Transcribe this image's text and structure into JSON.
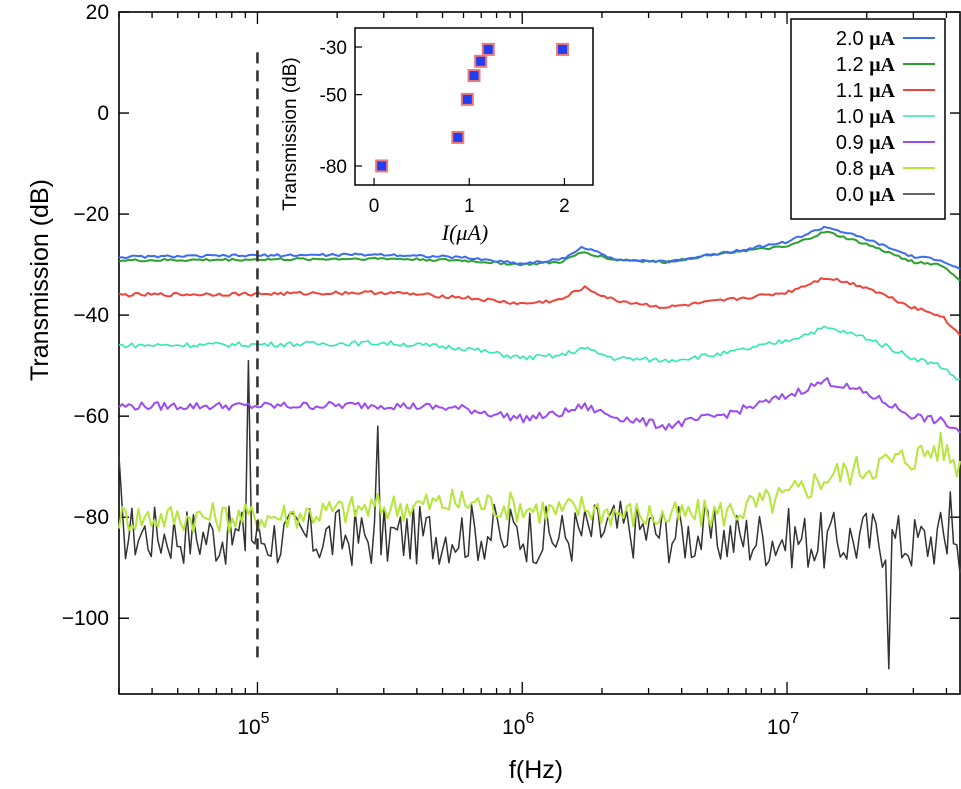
{
  "chart_data": [
    {
      "type": "line",
      "xscale": "log",
      "xlabel": "f(Hz)",
      "ylabel": "Transmission (dB)",
      "xlim": [
        30000,
        45000000
      ],
      "ylim": [
        -115,
        20
      ],
      "yticks": [
        20,
        0,
        -20,
        -40,
        -60,
        -80,
        -100
      ],
      "ytick_labels": [
        "20",
        "0",
        "−20",
        "−40",
        "−60",
        "−80",
        "−100"
      ],
      "xtick_labels": [
        {
          "value": 100000,
          "base": "10",
          "exp": "5"
        },
        {
          "value": 1000000,
          "base": "10",
          "exp": "6"
        },
        {
          "value": 10000000,
          "base": "10",
          "exp": "7"
        }
      ],
      "marker_line_x": 100000,
      "marker_line_yrange": [
        -108,
        12
      ],
      "legend_position": "top-right",
      "legend_unit": "μA",
      "series": [
        {
          "name": "2.0",
          "color": "#3b6cf2",
          "width": 2.0,
          "noise": 0.25,
          "x": [
            30000,
            100000,
            300000,
            600000,
            1000000,
            1400000,
            1700000,
            2200000,
            3500000,
            6000000,
            10000000,
            14000000,
            20000000,
            30000000,
            38000000,
            45000000
          ],
          "y": [
            -28.5,
            -28.2,
            -28,
            -28.6,
            -29.8,
            -29,
            -26.5,
            -28.8,
            -29.5,
            -27.5,
            -25.5,
            -22.5,
            -25,
            -28.5,
            -29,
            -31
          ]
        },
        {
          "name": "1.2",
          "color": "#2ca02c",
          "width": 2.0,
          "noise": 0.25,
          "x": [
            30000,
            100000,
            300000,
            600000,
            1000000,
            1400000,
            1700000,
            2200000,
            3500000,
            6000000,
            10000000,
            14000000,
            20000000,
            30000000,
            38000000,
            45000000
          ],
          "y": [
            -29.2,
            -29,
            -28.8,
            -29.2,
            -30,
            -29.5,
            -27.5,
            -29,
            -29.5,
            -27.5,
            -26.5,
            -23.5,
            -26,
            -29.5,
            -30,
            -33
          ]
        },
        {
          "name": "1.1",
          "color": "#f0443a",
          "width": 2.0,
          "noise": 0.35,
          "x": [
            30000,
            100000,
            300000,
            600000,
            1000000,
            1400000,
            1700000,
            2200000,
            3500000,
            6000000,
            10000000,
            14000000,
            20000000,
            30000000,
            38000000,
            45000000
          ],
          "y": [
            -36,
            -35.8,
            -35.5,
            -36.5,
            -37.8,
            -37,
            -34.5,
            -37,
            -38.5,
            -37,
            -35.5,
            -32.5,
            -34.5,
            -38.5,
            -40,
            -44
          ]
        },
        {
          "name": "1.0",
          "color": "#30e8b0",
          "width": 1.6,
          "noise": 0.5,
          "x": [
            30000,
            100000,
            300000,
            600000,
            1000000,
            1400000,
            1700000,
            2200000,
            3500000,
            6000000,
            10000000,
            14000000,
            20000000,
            30000000,
            38000000,
            45000000
          ],
          "y": [
            -46,
            -45.8,
            -45.5,
            -46.5,
            -48.5,
            -48,
            -46.5,
            -48.5,
            -49,
            -47.5,
            -45,
            -42.5,
            -44.5,
            -48.5,
            -50,
            -53
          ]
        },
        {
          "name": "0.9",
          "color": "#9b4cf0",
          "width": 2.0,
          "noise": 0.8,
          "x": [
            30000,
            100000,
            300000,
            600000,
            1000000,
            1400000,
            1700000,
            2200000,
            3500000,
            6000000,
            10000000,
            14000000,
            20000000,
            30000000,
            38000000,
            45000000
          ],
          "y": [
            -58,
            -58,
            -57.8,
            -58.5,
            -60.5,
            -59.5,
            -58,
            -60,
            -62,
            -59.5,
            -56,
            -53,
            -55.5,
            -60,
            -61,
            -63
          ]
        },
        {
          "name": "0.8",
          "color": "#b4e63c",
          "width": 2.0,
          "noise": 3.0,
          "x": [
            30000,
            100000,
            300000,
            600000,
            1000000,
            1400000,
            1700000,
            2200000,
            3500000,
            6000000,
            10000000,
            14000000,
            20000000,
            30000000,
            38000000,
            45000000
          ],
          "y": [
            -80,
            -80,
            -78,
            -77,
            -78,
            -79,
            -78,
            -79,
            -80,
            -79,
            -76,
            -72,
            -70,
            -68,
            -66,
            -70
          ]
        },
        {
          "name": "0.0",
          "color": "#333333",
          "width": 1.5,
          "noise": 6.0,
          "x": [
            30000,
            100000,
            300000,
            600000,
            1000000,
            1400000,
            1700000,
            2200000,
            3500000,
            6000000,
            10000000,
            14000000,
            20000000,
            30000000,
            38000000,
            45000000
          ],
          "y": [
            -83,
            -84,
            -84,
            -83,
            -83,
            -84,
            -83,
            -82,
            -83,
            -84,
            -84,
            -85,
            -84,
            -85,
            -84,
            -86
          ],
          "spikes": [
            [
              30000,
              -68
            ],
            [
              92000,
              -49
            ],
            [
              285000,
              -62
            ],
            [
              860000,
              -86
            ],
            [
              24000000,
              -110
            ],
            [
              41000000,
              -75
            ]
          ]
        }
      ]
    },
    {
      "type": "scatter",
      "title": "",
      "xlabel": "I(μA)",
      "ylabel": "Transmission (dB)",
      "xlim": [
        -0.2,
        2.3
      ],
      "ylim": [
        -88,
        -22
      ],
      "xticks": [
        0,
        1,
        2
      ],
      "xtick_labels": [
        "0",
        "1",
        "2"
      ],
      "yticks": [
        -30,
        -50,
        -80
      ],
      "ytick_labels": [
        "-30",
        "-50",
        "-80"
      ],
      "marker_fill": "#1f3ff0",
      "marker_edge": "#f07878",
      "x": [
        0.08,
        0.88,
        0.98,
        1.05,
        1.12,
        1.2,
        1.98
      ],
      "y": [
        -80,
        -68,
        -52,
        -42,
        -36,
        -31,
        -31
      ]
    }
  ]
}
